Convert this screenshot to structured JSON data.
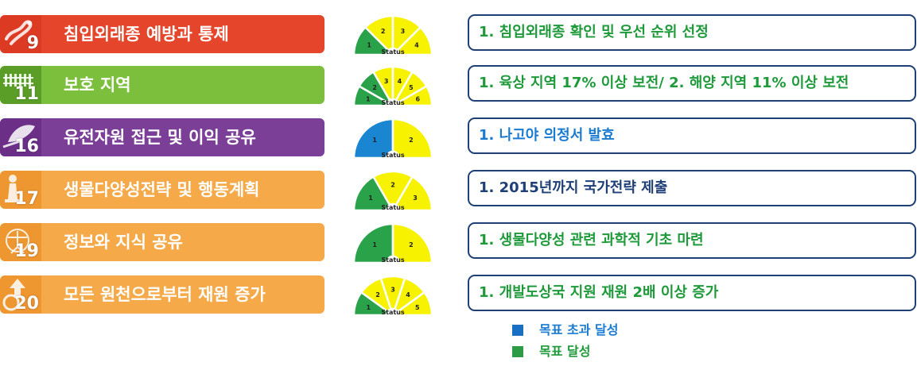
{
  "colors": {
    "navy_border": "#1f3f77",
    "exceeded": "#1a7bd0",
    "achieved": "#1e9a3a",
    "wedge_yellow": "#f6f200",
    "wedge_green": "#2aa24a",
    "wedge_blue": "#1a86d2"
  },
  "gauge_label": "Status",
  "rows": [
    {
      "badge_number": "9",
      "title": "침입외래종 예방과 통제",
      "banner_color": "#e5452a",
      "badge_color": "#dd3a23",
      "badge_icon": "lizard-icon",
      "gauge": {
        "segments": [
          "1",
          "2",
          "3",
          "4"
        ],
        "status_count": 1,
        "status_color": "green"
      },
      "target_text": "1. 침입외래종 확인 및 우선 순위 선정",
      "target_color": "#1e9a3a"
    },
    {
      "badge_number": "11",
      "title": "보호 지역",
      "banner_color": "#7bbf3c",
      "badge_color": "#5a9e28",
      "badge_icon": "fence-icon",
      "gauge": {
        "segments": [
          "1",
          "2",
          "3",
          "4",
          "5",
          "6"
        ],
        "status_count": 2,
        "status_color": "green"
      },
      "target_text": "1. 육상 지역 17% 이상 보전/ 2. 해양 지역 11% 이상 보전",
      "target_color": "#1e9a3a"
    },
    {
      "badge_number": "16",
      "title": "유전자원 접근 및 이익 공유",
      "banner_color": "#7b3f98",
      "badge_color": "#6b2f88",
      "badge_icon": "leaf-hand-icon",
      "gauge": {
        "segments": [
          "1",
          "2"
        ],
        "status_count": 1,
        "status_color": "blue"
      },
      "target_text": "1. 나고야 의정서 발효",
      "target_color": "#1a7bd0"
    },
    {
      "badge_number": "17",
      "title": "생물다양성전략 및 행동계획",
      "banner_color": "#f5a948",
      "badge_color": "#ee9630",
      "badge_icon": "chess-icon",
      "gauge": {
        "segments": [
          "1",
          "2",
          "3"
        ],
        "status_count": 1,
        "status_color": "green"
      },
      "target_text": "1. 2015년까지 국가전략 제출",
      "target_color": "#1f3f77"
    },
    {
      "badge_number": "19",
      "title": "정보와 지식 공유",
      "banner_color": "#f5a948",
      "badge_color": "#ee9630",
      "badge_icon": "vitruvian-icon",
      "gauge": {
        "segments": [
          "1",
          "2"
        ],
        "status_count": 1,
        "status_color": "green"
      },
      "target_text": "1. 생물다양성 관련 과학적 기초 마련",
      "target_color": "#1e9a3a"
    },
    {
      "badge_number": "20",
      "title": "모든 원천으로부터 재원 증가",
      "banner_color": "#f5a948",
      "badge_color": "#ee9630",
      "badge_icon": "money-arrow-icon",
      "gauge": {
        "segments": [
          "1",
          "2",
          "3",
          "4",
          "5"
        ],
        "status_count": 1,
        "status_color": "green"
      },
      "target_text": "1. 개발도상국 지원 재원 2배 이상 증가",
      "target_color": "#1e9a3a"
    }
  ],
  "legend": [
    {
      "label": "목표 초과 달성",
      "color": "#1a6fc2",
      "text_color": "#1a7bd0"
    },
    {
      "label": "목표 달성",
      "color": "#2e9c46",
      "text_color": "#1e9a3a"
    }
  ]
}
